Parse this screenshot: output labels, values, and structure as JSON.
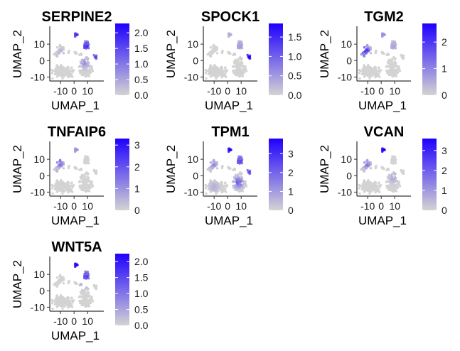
{
  "chart_data": [
    {
      "type": "scatter",
      "title": "SERPINE2",
      "xlabel": "UMAP_1",
      "ylabel": "UMAP_2",
      "xticks": [
        -10,
        0,
        10
      ],
      "yticks": [
        -10,
        0,
        10
      ],
      "xlim": [
        -18,
        22
      ],
      "ylim": [
        -12,
        20
      ],
      "legend": {
        "min": 0,
        "max": 2.3,
        "ticks": [
          "0.0",
          "0.5",
          "1.0",
          "1.5",
          "2.0"
        ],
        "tick_values": [
          0,
          0.5,
          1.0,
          1.5,
          2.0
        ],
        "low_color": "#d3d3d3",
        "high_color": "#1f00ff"
      },
      "hotspots": [
        [
          1.5,
          15.5,
          1.6
        ],
        [
          9,
          9,
          1.8
        ],
        [
          16,
          2.5,
          1.4
        ],
        [
          8,
          -1,
          0.7
        ],
        [
          -10,
          4,
          0.4
        ]
      ]
    },
    {
      "type": "scatter",
      "title": "SPOCK1",
      "xlabel": "UMAP_1",
      "ylabel": "UMAP_2",
      "xticks": [
        -10,
        0,
        10
      ],
      "yticks": [
        -10,
        0,
        10
      ],
      "xlim": [
        -18,
        22
      ],
      "ylim": [
        -12,
        20
      ],
      "legend": {
        "min": 0,
        "max": 1.85,
        "ticks": [
          "0.0",
          "0.5",
          "1.0",
          "1.5"
        ],
        "tick_values": [
          0,
          0.5,
          1.0,
          1.5
        ],
        "low_color": "#d3d3d3",
        "high_color": "#1f00ff"
      },
      "hotspots": [
        [
          16,
          2.5,
          1.8
        ],
        [
          9,
          9,
          0.5
        ],
        [
          1.5,
          15.5,
          0.3
        ]
      ]
    },
    {
      "type": "scatter",
      "title": "TGM2",
      "xlabel": "UMAP_1",
      "ylabel": "UMAP_2",
      "xticks": [
        -10,
        0,
        10
      ],
      "yticks": [
        -10,
        0,
        10
      ],
      "xlim": [
        -18,
        22
      ],
      "ylim": [
        -12,
        20
      ],
      "legend": {
        "min": 0,
        "max": 2.7,
        "ticks": [
          "0",
          "1",
          "2"
        ],
        "tick_values": [
          0,
          1,
          2
        ],
        "low_color": "#d3d3d3",
        "high_color": "#1f00ff"
      },
      "hotspots": [
        [
          -12,
          6,
          2.4
        ],
        [
          1.5,
          15.5,
          0.8
        ],
        [
          9,
          9,
          0.6
        ]
      ]
    },
    {
      "type": "scatter",
      "title": "TNFAIP6",
      "xlabel": "UMAP_1",
      "ylabel": "UMAP_2",
      "xticks": [
        -10,
        0,
        10
      ],
      "yticks": [
        -10,
        0,
        10
      ],
      "xlim": [
        -18,
        22
      ],
      "ylim": [
        -12,
        20
      ],
      "legend": {
        "min": 0,
        "max": 3.3,
        "ticks": [
          "0",
          "1",
          "2",
          "3"
        ],
        "tick_values": [
          0,
          1,
          2,
          3
        ],
        "low_color": "#d3d3d3",
        "high_color": "#1f00ff"
      },
      "hotspots": [
        [
          -11,
          8,
          1.8
        ],
        [
          1.5,
          15.5,
          0.9
        ],
        [
          -11,
          3,
          0.6
        ]
      ]
    },
    {
      "type": "scatter",
      "title": "TPM1",
      "xlabel": "UMAP_1",
      "ylabel": "UMAP_2",
      "xticks": [
        -10,
        0,
        10
      ],
      "yticks": [
        -10,
        0,
        10
      ],
      "xlim": [
        -18,
        22
      ],
      "ylim": [
        -12,
        20
      ],
      "legend": {
        "min": 0,
        "max": 3.8,
        "ticks": [
          "0",
          "1",
          "2",
          "3"
        ],
        "tick_values": [
          0,
          1,
          2,
          3
        ],
        "low_color": "#d3d3d3",
        "high_color": "#1f00ff"
      },
      "hotspots": [
        [
          1.5,
          15.5,
          3.4
        ],
        [
          9,
          9,
          2.6
        ],
        [
          16,
          2.5,
          2.2
        ],
        [
          8,
          -4,
          2.0
        ],
        [
          -11,
          7,
          1.3
        ],
        [
          -10,
          -7,
          0.6
        ]
      ]
    },
    {
      "type": "scatter",
      "title": "VCAN",
      "xlabel": "UMAP_1",
      "ylabel": "UMAP_2",
      "xticks": [
        -10,
        0,
        10
      ],
      "yticks": [
        -10,
        0,
        10
      ],
      "xlim": [
        -18,
        22
      ],
      "ylim": [
        -12,
        20
      ],
      "legend": {
        "min": 0,
        "max": 3.6,
        "ticks": [
          "0",
          "1",
          "2",
          "3"
        ],
        "tick_values": [
          0,
          1,
          2,
          3
        ],
        "low_color": "#d3d3d3",
        "high_color": "#1f00ff"
      },
      "hotspots": [
        [
          1.5,
          15.5,
          3.3
        ],
        [
          -11,
          7,
          1.5
        ],
        [
          9,
          -1,
          0.7
        ]
      ]
    },
    {
      "type": "scatter",
      "title": "WNT5A",
      "xlabel": "UMAP_1",
      "ylabel": "UMAP_2",
      "xticks": [
        -10,
        0,
        10
      ],
      "yticks": [
        -10,
        0,
        10
      ],
      "xlim": [
        -18,
        22
      ],
      "ylim": [
        -12,
        20
      ],
      "legend": {
        "min": 0,
        "max": 2.25,
        "ticks": [
          "0.0",
          "0.5",
          "1.0",
          "1.5",
          "2.0"
        ],
        "tick_values": [
          0,
          0.5,
          1.0,
          1.5,
          2.0
        ],
        "low_color": "#d3d3d3",
        "high_color": "#1f00ff"
      },
      "hotspots": [
        [
          1.5,
          15.5,
          2.0
        ],
        [
          9,
          9,
          1.6
        ],
        [
          8,
          5,
          0.8
        ]
      ]
    }
  ]
}
